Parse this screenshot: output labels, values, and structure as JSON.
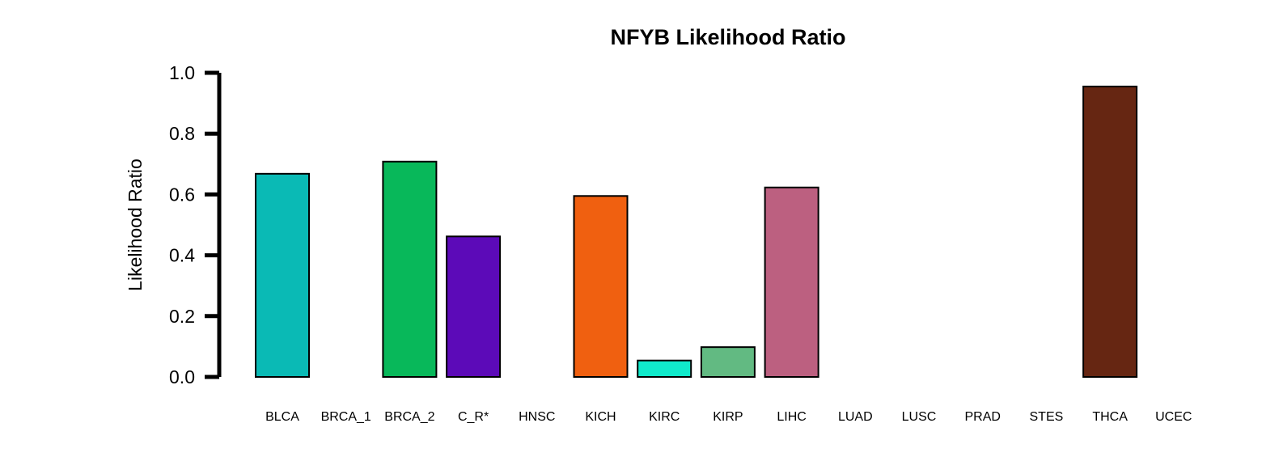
{
  "chart_data": {
    "type": "bar",
    "title": "NFYB Likelihood Ratio",
    "xlabel": "",
    "ylabel": "Likelihood Ratio",
    "ylim": [
      0,
      1.0
    ],
    "yticks": [
      "0.0",
      "0.2",
      "0.4",
      "0.6",
      "0.8",
      "1.0"
    ],
    "grid": false,
    "legend": "none",
    "categories": [
      "BLCA",
      "BRCA_1",
      "BRCA_2",
      "C_R*",
      "HNSC",
      "KICH",
      "KIRC",
      "KIRP",
      "LIHC",
      "LUAD",
      "LUSC",
      "PRAD",
      "STES",
      "THCA",
      "UCEC"
    ],
    "values": [
      0.668,
      0.0,
      0.708,
      0.462,
      0.0,
      0.595,
      0.054,
      0.098,
      0.623,
      0.0,
      0.0,
      0.0,
      0.0,
      0.955,
      0.0
    ],
    "colors": [
      "#0ABAB5",
      "#000000",
      "#08B85A",
      "#5C0AB8",
      "#000000",
      "#F06010",
      "#10EACB",
      "#62BA82",
      "#BC6080",
      "#000000",
      "#000000",
      "#000000",
      "#000000",
      "#662612",
      "#000000"
    ]
  }
}
